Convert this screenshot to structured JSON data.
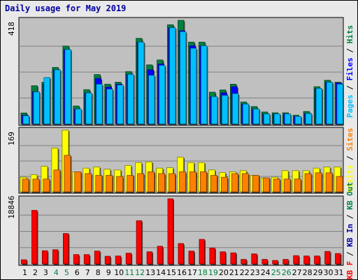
{
  "title": "Daily usage for May 2019",
  "colors": {
    "background": "#e8e8e8",
    "panel": "#c0c0c0",
    "grid": "#808080",
    "hits": "#008040",
    "files": "#0000ff",
    "pages": "#00c0ff",
    "visits": "#ffff00",
    "sites": "#ff8000",
    "kb_in": "#ff0000",
    "weekday_tick": "#000000",
    "weekend_tick": "#008040"
  },
  "chart_data": [
    {
      "type": "bar",
      "title": "Daily usage for May 2019",
      "categories": [
        "1",
        "2",
        "3",
        "4",
        "5",
        "6",
        "7",
        "8",
        "9",
        "10",
        "11",
        "12",
        "13",
        "14",
        "15",
        "16",
        "17",
        "18",
        "19",
        "20",
        "21",
        "22",
        "23",
        "24",
        "25",
        "26",
        "27",
        "28",
        "29",
        "30",
        "31"
      ],
      "weekend_days": [
        "4",
        "5",
        "11",
        "12",
        "18",
        "19",
        "25",
        "26"
      ],
      "ymax_label": "418",
      "ylim": [
        0,
        418
      ],
      "grid": true,
      "legend": "right-vertical",
      "legend_items": [
        {
          "label": "Pages",
          "color": "#00c0ff"
        },
        {
          "label": "Files",
          "color": "#0000ff"
        },
        {
          "label": "Hits",
          "color": "#008040"
        }
      ],
      "series": [
        {
          "name": "Hits",
          "values": [
            44,
            154,
            168,
            228,
            314,
            72,
            138,
            199,
            160,
            168,
            211,
            345,
            238,
            258,
            400,
            418,
            330,
            330,
            128,
            137,
            160,
            88,
            70,
            48,
            45,
            45,
            35,
            50,
            150,
            176,
            168
          ]
        },
        {
          "name": "Files",
          "values": [
            35,
            130,
            160,
            218,
            300,
            60,
            125,
            183,
            148,
            160,
            200,
            330,
            218,
            242,
            388,
            376,
            315,
            315,
            110,
            125,
            150,
            80,
            60,
            40,
            40,
            40,
            30,
            42,
            143,
            168,
            165
          ]
        },
        {
          "name": "Pages",
          "values": [
            33,
            129,
            187,
            218,
            300,
            60,
            125,
            160,
            140,
            157,
            200,
            330,
            196,
            236,
            388,
            372,
            305,
            315,
            110,
            115,
            122,
            80,
            60,
            40,
            40,
            40,
            30,
            42,
            143,
            168,
            160
          ]
        }
      ]
    },
    {
      "type": "bar",
      "ymax_label": "169",
      "ylim": [
        0,
        169
      ],
      "grid": true,
      "legend": "right-vertical",
      "legend_items": [
        {
          "label": "Visits",
          "color": "#ffff00"
        },
        {
          "label": "Sites",
          "color": "#ff8000"
        }
      ],
      "series": [
        {
          "name": "Visits",
          "values": [
            40,
            47,
            70,
            120,
            169,
            55,
            65,
            68,
            62,
            60,
            72,
            80,
            82,
            65,
            66,
            95,
            80,
            80,
            60,
            53,
            55,
            58,
            45,
            38,
            40,
            58,
            58,
            58,
            65,
            68,
            68
          ]
        },
        {
          "name": "Sites",
          "values": [
            35,
            35,
            35,
            60,
            100,
            55,
            50,
            45,
            45,
            42,
            45,
            50,
            55,
            50,
            50,
            55,
            55,
            55,
            45,
            40,
            50,
            50,
            45,
            38,
            35,
            35,
            35,
            50,
            52,
            52,
            42
          ]
        }
      ]
    },
    {
      "type": "bar",
      "ymax_label": "18846",
      "ylim": [
        0,
        18846
      ],
      "grid": true,
      "legend": "right-vertical",
      "legend_items": [
        {
          "label": "KB F",
          "color": "#ff0000"
        },
        {
          "label": "KB In",
          "color": "#0000a0"
        },
        {
          "label": "KB Out",
          "color": "#008040"
        }
      ],
      "series": [
        {
          "name": "KB F",
          "values": [
            1200,
            15500,
            3800,
            4100,
            8800,
            2700,
            2700,
            3700,
            2200,
            2300,
            3100,
            12500,
            3500,
            5100,
            18846,
            5900,
            3700,
            7100,
            4600,
            3500,
            3200,
            1300,
            2900,
            1300,
            1000,
            1300,
            2400,
            2300,
            2300,
            3600,
            3000
          ]
        }
      ]
    }
  ]
}
